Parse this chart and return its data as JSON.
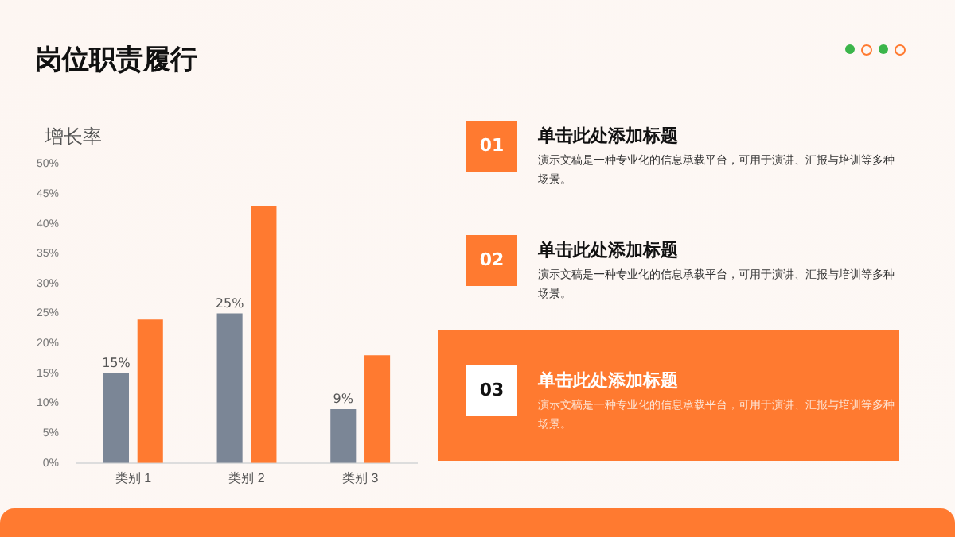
{
  "chart_data": {
    "type": "bar",
    "title": "岗位职责履行",
    "ylabel": "增长率",
    "categories": [
      "类别 1",
      "类别 2",
      "类别 3"
    ],
    "series": [
      {
        "color": "#7b8696",
        "values": [
          15,
          25,
          9
        ],
        "value_labels": [
          "15%",
          "25%",
          "9%"
        ]
      },
      {
        "color": "#ff7a30",
        "values": [
          24,
          43,
          18
        ]
      }
    ],
    "ylim": [
      0,
      50
    ],
    "yticks": [
      {
        "value": 0,
        "label": "0%"
      },
      {
        "value": 5,
        "label": "5%"
      },
      {
        "value": 10,
        "label": "10%"
      },
      {
        "value": 15,
        "label": "15%"
      },
      {
        "value": 20,
        "label": "20%"
      },
      {
        "value": 25,
        "label": "25%"
      },
      {
        "value": 30,
        "label": "30%"
      },
      {
        "value": 35,
        "label": "35%"
      },
      {
        "value": 40,
        "label": "40%"
      },
      {
        "value": 45,
        "label": "45%"
      },
      {
        "value": 50,
        "label": "50%"
      }
    ],
    "legend": false,
    "annotations": [
      "01",
      "单击此处添加标题",
      "演示文稿是一种专业化的信息承载平台，可用于演讲、汇报与培训等多种场景。",
      "02",
      "单击此处添加标题",
      "演示文稿是一种专业化的信息承载平台，可用于演讲、汇报与培训等多种场景。",
      "03",
      "单击此处添加标题",
      "演示文稿是一种专业化的信息承载平台，可用于演讲、汇报与培训等多种场景。"
    ]
  }
}
